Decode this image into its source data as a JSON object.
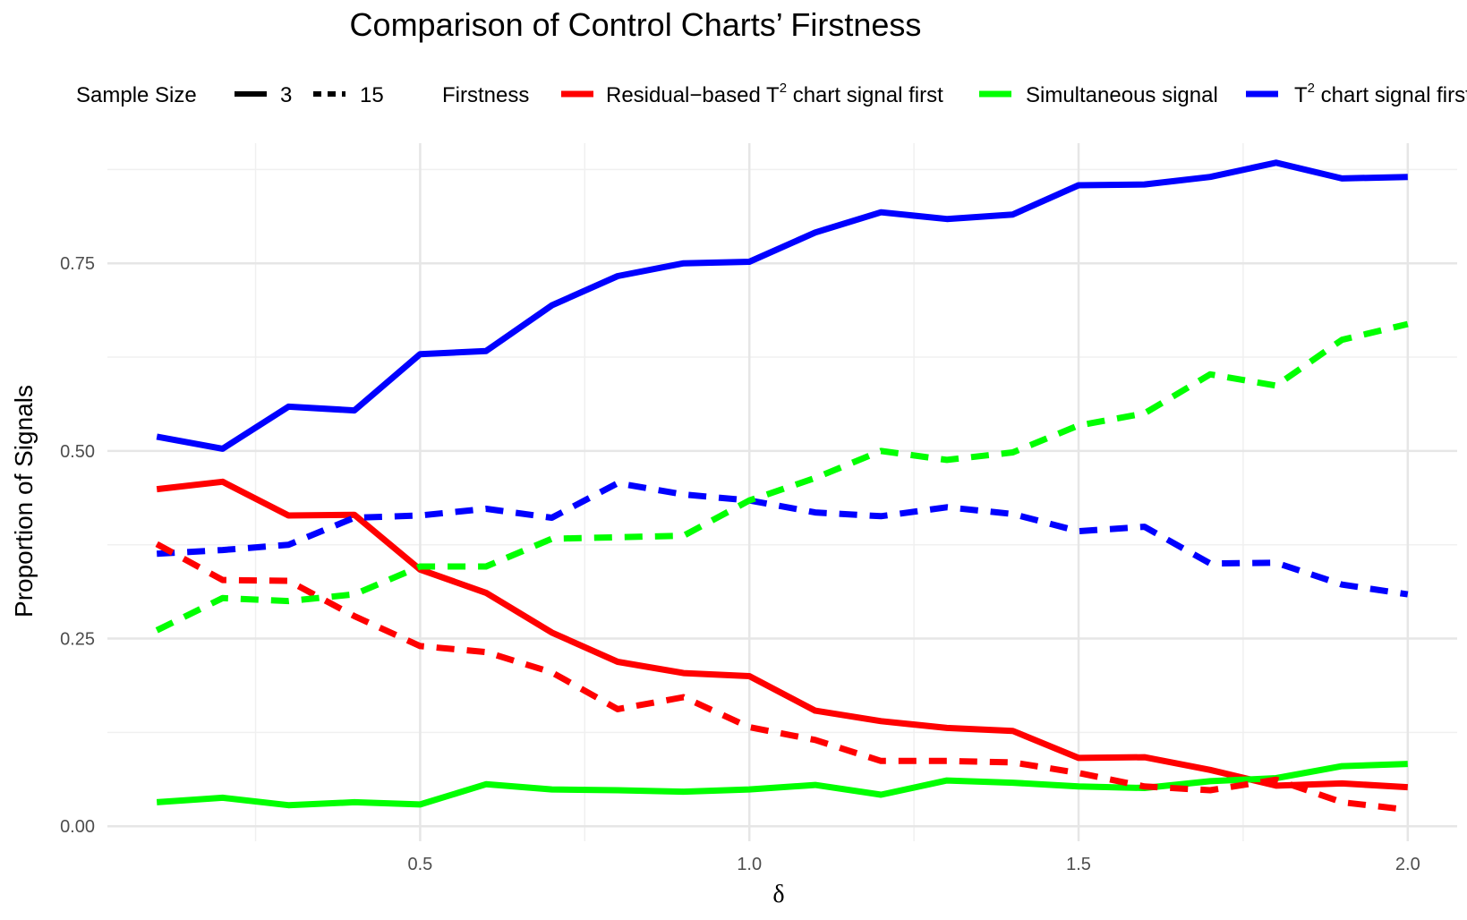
{
  "chart_data": {
    "type": "line",
    "title": "Comparison of Control Charts’ Firstness",
    "xlabel": "δ",
    "ylabel": "Proportion of Signals",
    "xlim": [
      0.025,
      2.075
    ],
    "ylim": [
      -0.02,
      0.91
    ],
    "xticks": [
      0.5,
      1.0,
      1.5,
      2.0
    ],
    "xtick_labels": [
      "0.5",
      "1.0",
      "1.5",
      "2.0"
    ],
    "yticks": [
      0.0,
      0.25,
      0.5,
      0.75
    ],
    "ytick_labels": [
      "0.00",
      "0.25",
      "0.50",
      "0.75"
    ],
    "grid": true,
    "legend_position": "top",
    "legend": {
      "linetype_title": "Sample Size",
      "linetype_entries": [
        {
          "label": "3",
          "dash": "solid"
        },
        {
          "label": "15",
          "dash": "dashed"
        }
      ],
      "color_title": "Firstness",
      "color_entries": [
        {
          "base": "Residual−based T",
          "sup": "2",
          "rest": " chart signal first",
          "color": "#ff0000"
        },
        {
          "base": "Simultaneous signal",
          "sup": "",
          "rest": "",
          "color": "#00ff00"
        },
        {
          "base": "T",
          "sup": "2",
          "rest": " chart signal first",
          "color": "#0000ff"
        }
      ]
    },
    "x": [
      0.1,
      0.2,
      0.3,
      0.4,
      0.5,
      0.6,
      0.7,
      0.8,
      0.9,
      1.0,
      1.1,
      1.2,
      1.3,
      1.4,
      1.5,
      1.6,
      1.7,
      1.8,
      1.9,
      2.0
    ],
    "series": [
      {
        "name": "T2 chart signal first",
        "sample_size": "3",
        "color": "#0000ff",
        "dash": "solid",
        "values": [
          0.519,
          0.503,
          0.559,
          0.554,
          0.629,
          0.633,
          0.694,
          0.733,
          0.75,
          0.752,
          0.791,
          0.818,
          0.809,
          0.815,
          0.854,
          0.855,
          0.865,
          0.884,
          0.863,
          0.865
        ]
      },
      {
        "name": "Residual-based T2 chart signal first",
        "sample_size": "3",
        "color": "#ff0000",
        "dash": "solid",
        "values": [
          0.449,
          0.459,
          0.414,
          0.415,
          0.342,
          0.311,
          0.258,
          0.219,
          0.204,
          0.2,
          0.154,
          0.14,
          0.131,
          0.127,
          0.091,
          0.092,
          0.075,
          0.054,
          0.057,
          0.052
        ]
      },
      {
        "name": "Simultaneous signal",
        "sample_size": "3",
        "color": "#00ff00",
        "dash": "solid",
        "values": [
          0.032,
          0.038,
          0.028,
          0.032,
          0.029,
          0.056,
          0.049,
          0.048,
          0.046,
          0.049,
          0.055,
          0.042,
          0.061,
          0.058,
          0.053,
          0.051,
          0.06,
          0.064,
          0.08,
          0.083
        ]
      },
      {
        "name": "T2 chart signal first",
        "sample_size": "15",
        "color": "#0000ff",
        "dash": "dashed",
        "values": [
          0.363,
          0.368,
          0.375,
          0.411,
          0.414,
          0.423,
          0.411,
          0.457,
          0.442,
          0.434,
          0.418,
          0.413,
          0.425,
          0.416,
          0.393,
          0.399,
          0.35,
          0.351,
          0.322,
          0.309
        ]
      },
      {
        "name": "Residual-based T2 chart signal first",
        "sample_size": "15",
        "color": "#ff0000",
        "dash": "dashed",
        "values": [
          0.376,
          0.328,
          0.327,
          0.28,
          0.24,
          0.232,
          0.205,
          0.156,
          0.172,
          0.132,
          0.115,
          0.087,
          0.087,
          0.085,
          0.071,
          0.053,
          0.048,
          0.062,
          0.032,
          0.022
        ]
      },
      {
        "name": "Simultaneous signal",
        "sample_size": "15",
        "color": "#00ff00",
        "dash": "dashed",
        "values": [
          0.261,
          0.304,
          0.3,
          0.309,
          0.346,
          0.346,
          0.383,
          0.385,
          0.387,
          0.434,
          0.464,
          0.5,
          0.488,
          0.498,
          0.534,
          0.55,
          0.602,
          0.587,
          0.648,
          0.669
        ]
      }
    ]
  }
}
